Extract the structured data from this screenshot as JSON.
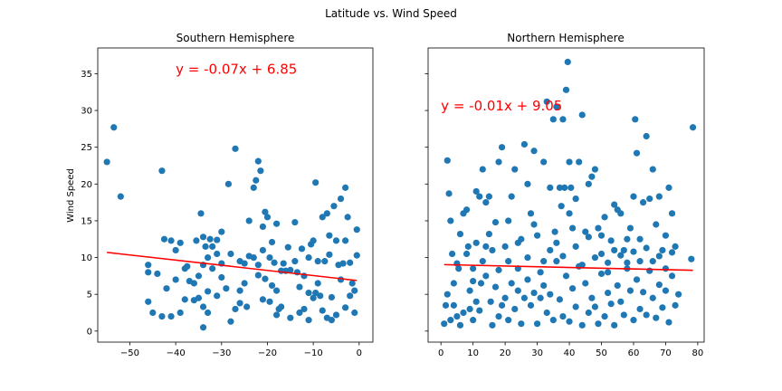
{
  "figure": {
    "suptitle": "Latitude vs. Wind Speed"
  },
  "chart_data": [
    {
      "type": "scatter",
      "title": "Southern Hemisphere",
      "xlabel": "",
      "ylabel": "Wind Speed",
      "xlim": [
        -57,
        3
      ],
      "ylim": [
        -1.5,
        38.5
      ],
      "xticks": [
        -50,
        -40,
        -30,
        -20,
        -10,
        0
      ],
      "yticks": [
        0,
        5,
        10,
        15,
        20,
        25,
        30,
        35
      ],
      "marker_color": "#1f77b4",
      "regression": {
        "slope": -0.07,
        "intercept": 6.85,
        "equation": "y = -0.07x + 6.85",
        "color": "#ff0000",
        "label_at": [
          -40,
          35
        ]
      },
      "points": [
        [
          -55,
          23
        ],
        [
          -53.5,
          27.7
        ],
        [
          -52,
          18.3
        ],
        [
          -46,
          9
        ],
        [
          -45,
          2.5
        ],
        [
          -43,
          21.8
        ],
        [
          -46,
          8
        ],
        [
          -46,
          4
        ],
        [
          -42.5,
          12.5
        ],
        [
          -41,
          12.3
        ],
        [
          -40,
          11
        ],
        [
          -39,
          12
        ],
        [
          -38,
          8.5
        ],
        [
          -40,
          7
        ],
        [
          -42,
          5.8
        ],
        [
          -43,
          2
        ],
        [
          -41,
          2
        ],
        [
          -39,
          2.5
        ],
        [
          -38,
          4.3
        ],
        [
          -35.5,
          12.3
        ],
        [
          -34.5,
          16
        ],
        [
          -34,
          12.8
        ],
        [
          -33.5,
          11.5
        ],
        [
          -33,
          10
        ],
        [
          -34,
          9
        ],
        [
          -35,
          7.5
        ],
        [
          -36,
          6.5
        ],
        [
          -37,
          6.8
        ],
        [
          -35,
          4.5
        ],
        [
          -34,
          3.3
        ],
        [
          -33,
          2.5
        ],
        [
          -34,
          0.5
        ],
        [
          -32.5,
          12.5
        ],
        [
          -32,
          11.5
        ],
        [
          -31,
          10.5
        ],
        [
          -30,
          13.5
        ],
        [
          -31,
          4.8
        ],
        [
          -30,
          7.3
        ],
        [
          -28.5,
          20
        ],
        [
          -28,
          1.3
        ],
        [
          -27,
          24.8
        ],
        [
          -26,
          9.5
        ],
        [
          -26,
          5.5
        ],
        [
          -25,
          9.2
        ],
        [
          -24.5,
          3.3
        ],
        [
          -24,
          15
        ],
        [
          -23,
          19.5
        ],
        [
          -22.5,
          20.5
        ],
        [
          -22,
          23.1
        ],
        [
          -21.5,
          21.8
        ],
        [
          -21,
          14.2
        ],
        [
          -21,
          11
        ],
        [
          -20.5,
          16.2
        ],
        [
          -20,
          15.5
        ],
        [
          -19.5,
          10
        ],
        [
          -19,
          12.1
        ],
        [
          -18.5,
          9.3
        ],
        [
          -18,
          14.6
        ],
        [
          -23,
          10
        ],
        [
          -22,
          9
        ],
        [
          -22,
          7.6
        ],
        [
          -20.5,
          7.1
        ],
        [
          -21,
          4.3
        ],
        [
          -19.5,
          4
        ],
        [
          -18,
          5.5
        ],
        [
          -17.5,
          3
        ],
        [
          -16.5,
          9.2
        ],
        [
          -17,
          8.2
        ],
        [
          -16,
          8.2
        ],
        [
          -15,
          8.3
        ],
        [
          -14,
          14.8
        ],
        [
          -14,
          9.5
        ],
        [
          -13.5,
          8
        ],
        [
          -13,
          6
        ],
        [
          -12,
          3
        ],
        [
          -11,
          1.5
        ],
        [
          -10.5,
          11.8
        ],
        [
          -10,
          12.3
        ],
        [
          -9.5,
          20.2
        ],
        [
          -9,
          9.5
        ],
        [
          -9,
          6.5
        ],
        [
          -8.5,
          4.8
        ],
        [
          -8,
          15.5
        ],
        [
          -7.5,
          9.5
        ],
        [
          -7,
          16
        ],
        [
          -6.5,
          13
        ],
        [
          -6,
          1.5
        ],
        [
          -5.5,
          17
        ],
        [
          -5,
          12.3
        ],
        [
          -4.5,
          9
        ],
        [
          -4,
          18
        ],
        [
          -3.5,
          9.2
        ],
        [
          -3,
          19.5
        ],
        [
          -3,
          12.3
        ],
        [
          -2.5,
          15.5
        ],
        [
          -2,
          9.3
        ],
        [
          -1.5,
          6.5
        ],
        [
          -1,
          5.5
        ],
        [
          -0.5,
          13.8
        ],
        [
          -0.5,
          10.3
        ],
        [
          -1,
          2.5
        ],
        [
          -3,
          3.2
        ],
        [
          -5,
          2.2
        ],
        [
          -7,
          1.8
        ],
        [
          -10,
          4.5
        ],
        [
          -11,
          5.2
        ],
        [
          -13,
          2.5
        ],
        [
          -15,
          1.8
        ],
        [
          -17,
          3.3
        ],
        [
          -25,
          6.5
        ],
        [
          -27,
          3
        ],
        [
          -29,
          5.8
        ],
        [
          -30,
          9.2
        ],
        [
          -32,
          8.5
        ],
        [
          -36,
          4.2
        ],
        [
          -44,
          7.8
        ],
        [
          -37.5,
          8.8
        ],
        [
          -28,
          10.5
        ],
        [
          -8,
          2.8
        ],
        [
          -6,
          4.6
        ],
        [
          -2,
          4.8
        ],
        [
          -12,
          7.5
        ],
        [
          -19,
          6.2
        ],
        [
          -26,
          3.8
        ],
        [
          -33,
          5.4
        ],
        [
          -4,
          7
        ],
        [
          -9.5,
          5.2
        ],
        [
          -11,
          10
        ],
        [
          -12.5,
          11.2
        ],
        [
          -15.5,
          11.4
        ],
        [
          -24,
          10.2
        ],
        [
          -31,
          12.4
        ],
        [
          -18,
          2.2
        ],
        [
          -6.5,
          10.4
        ]
      ]
    },
    {
      "type": "scatter",
      "title": "Northern Hemisphere",
      "xlabel": "",
      "ylabel": "",
      "xlim": [
        -4,
        82
      ],
      "ylim": [
        -1.5,
        38.5
      ],
      "xticks": [
        0,
        10,
        20,
        30,
        40,
        50,
        60,
        70,
        80
      ],
      "yticks": [
        0,
        5,
        10,
        15,
        20,
        25,
        30,
        35
      ],
      "marker_color": "#1f77b4",
      "regression": {
        "slope": -0.01,
        "intercept": 9.05,
        "equation": "y = -0.01x + 9.05",
        "color": "#ff0000",
        "label_at": [
          0,
          30
        ]
      },
      "points": [
        [
          1,
          1
        ],
        [
          1.5,
          3.5
        ],
        [
          2,
          23.2
        ],
        [
          2.5,
          18.7
        ],
        [
          3,
          15
        ],
        [
          3.5,
          10.5
        ],
        [
          4,
          6.5
        ],
        [
          5,
          2
        ],
        [
          5.5,
          8.5
        ],
        [
          6,
          13.2
        ],
        [
          7,
          16
        ],
        [
          8,
          16.5
        ],
        [
          8.5,
          11.5
        ],
        [
          9,
          3
        ],
        [
          10,
          8.5
        ],
        [
          11,
          12
        ],
        [
          12,
          18.3
        ],
        [
          12.5,
          6.5
        ],
        [
          13,
          22
        ],
        [
          14,
          17.5
        ],
        [
          15,
          18.3
        ],
        [
          15.5,
          4
        ],
        [
          16,
          11
        ],
        [
          17,
          14.8
        ],
        [
          18,
          23
        ],
        [
          19,
          25
        ],
        [
          20,
          11.5
        ],
        [
          21,
          9.5
        ],
        [
          22,
          18.3
        ],
        [
          23,
          22
        ],
        [
          24,
          5.5
        ],
        [
          25,
          12.5
        ],
        [
          26,
          25.4
        ],
        [
          27,
          20
        ],
        [
          28,
          16
        ],
        [
          29,
          24.5
        ],
        [
          30,
          13
        ],
        [
          31,
          4.5
        ],
        [
          32,
          23
        ],
        [
          33,
          31.2
        ],
        [
          34,
          19.5
        ],
        [
          35,
          28.8
        ],
        [
          35.5,
          13.5
        ],
        [
          36,
          30.5
        ],
        [
          37,
          19.5
        ],
        [
          37.5,
          17
        ],
        [
          38,
          28.8
        ],
        [
          38.5,
          19.5
        ],
        [
          39,
          32.8
        ],
        [
          39.5,
          36.6
        ],
        [
          40,
          23
        ],
        [
          40.5,
          19.5
        ],
        [
          41,
          14
        ],
        [
          42,
          18
        ],
        [
          43,
          23
        ],
        [
          44,
          29.4
        ],
        [
          45,
          13.5
        ],
        [
          46,
          20
        ],
        [
          47,
          21
        ],
        [
          48,
          22
        ],
        [
          49,
          14
        ],
        [
          50,
          10.5
        ],
        [
          51,
          15.5
        ],
        [
          52,
          8
        ],
        [
          53,
          12.3
        ],
        [
          54,
          17.2
        ],
        [
          55,
          16.5
        ],
        [
          56,
          16
        ],
        [
          57,
          11
        ],
        [
          58,
          8.5
        ],
        [
          59,
          14
        ],
        [
          60,
          18.3
        ],
        [
          60.5,
          28.8
        ],
        [
          61,
          24.2
        ],
        [
          62,
          12.5
        ],
        [
          63,
          17.5
        ],
        [
          64,
          26.5
        ],
        [
          65,
          18
        ],
        [
          66,
          22
        ],
        [
          67,
          14.5
        ],
        [
          68,
          18.3
        ],
        [
          69,
          11
        ],
        [
          70,
          13
        ],
        [
          71,
          19.5
        ],
        [
          72,
          16
        ],
        [
          73,
          11.5
        ],
        [
          74,
          5
        ],
        [
          78,
          9.8
        ],
        [
          78.5,
          27.7
        ],
        [
          2,
          5
        ],
        [
          3,
          1.5
        ],
        [
          4,
          3.5
        ],
        [
          6,
          0.8
        ],
        [
          7,
          2.5
        ],
        [
          9,
          5.5
        ],
        [
          10,
          1.5
        ],
        [
          11,
          4
        ],
        [
          12,
          2.8
        ],
        [
          13,
          9.5
        ],
        [
          14,
          7.5
        ],
        [
          16,
          0.8
        ],
        [
          17,
          6
        ],
        [
          18,
          2
        ],
        [
          19,
          3.5
        ],
        [
          20,
          4.5
        ],
        [
          21,
          1.5
        ],
        [
          22,
          6.5
        ],
        [
          23,
          3
        ],
        [
          24,
          8.5
        ],
        [
          25,
          1
        ],
        [
          26,
          4.5
        ],
        [
          27,
          7
        ],
        [
          28,
          3.5
        ],
        [
          29,
          5.2
        ],
        [
          30,
          1
        ],
        [
          31,
          8
        ],
        [
          32,
          6.2
        ],
        [
          33,
          2.5
        ],
        [
          34,
          5
        ],
        [
          35,
          1.5
        ],
        [
          36,
          9.5
        ],
        [
          37,
          4.3
        ],
        [
          38,
          2
        ],
        [
          39,
          7.5
        ],
        [
          40,
          1.3
        ],
        [
          41,
          5.8
        ],
        [
          42,
          3.3
        ],
        [
          43,
          8.8
        ],
        [
          44,
          0.8
        ],
        [
          45,
          6.5
        ],
        [
          46,
          2.5
        ],
        [
          47,
          4.5
        ],
        [
          48,
          3.3
        ],
        [
          49,
          1
        ],
        [
          50,
          7.8
        ],
        [
          51,
          2
        ],
        [
          52,
          5.2
        ],
        [
          53,
          3.7
        ],
        [
          54,
          0.8
        ],
        [
          55,
          6.2
        ],
        [
          56,
          4
        ],
        [
          57,
          2.2
        ],
        [
          58,
          9.3
        ],
        [
          59,
          5.5
        ],
        [
          60,
          1.5
        ],
        [
          61,
          7
        ],
        [
          62,
          3
        ],
        [
          63,
          5.3
        ],
        [
          64,
          2.2
        ],
        [
          65,
          8.2
        ],
        [
          66,
          4.5
        ],
        [
          67,
          1.8
        ],
        [
          68,
          6.3
        ],
        [
          69,
          3.2
        ],
        [
          70,
          5.5
        ],
        [
          71,
          1.2
        ],
        [
          72,
          7.5
        ],
        [
          73,
          3.5
        ],
        [
          11,
          19
        ],
        [
          15,
          13.2
        ],
        [
          18,
          8.3
        ],
        [
          21,
          15
        ],
        [
          24,
          12
        ],
        [
          27,
          10
        ],
        [
          29,
          14.5
        ],
        [
          32,
          9.5
        ],
        [
          34,
          11
        ],
        [
          36,
          12
        ],
        [
          38,
          10.2
        ],
        [
          40,
          16
        ],
        [
          42,
          11.5
        ],
        [
          44,
          9
        ],
        [
          46,
          12.8
        ],
        [
          48,
          10
        ],
        [
          50,
          13
        ],
        [
          52,
          9.3
        ],
        [
          54,
          11
        ],
        [
          56,
          10.3
        ],
        [
          58,
          12.5
        ],
        [
          60,
          10.8
        ],
        [
          62,
          9.5
        ],
        [
          64,
          11.3
        ],
        [
          66,
          9.5
        ],
        [
          68,
          10.2
        ],
        [
          70,
          8.5
        ],
        [
          72,
          10.7
        ],
        [
          5,
          9.2
        ],
        [
          8,
          10.5
        ],
        [
          10,
          6.8
        ],
        [
          14,
          11.5
        ]
      ]
    }
  ]
}
